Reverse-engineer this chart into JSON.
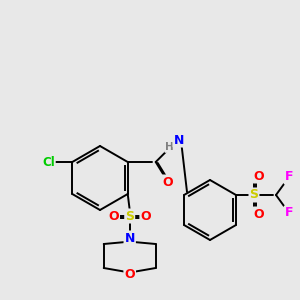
{
  "bg_color": "#e8e8e8",
  "bond_color": "#000000",
  "atom_colors": {
    "O": "#ff0000",
    "N": "#0000ff",
    "S": "#cccc00",
    "Cl": "#00cc00",
    "F": "#ff00ff",
    "C": "#000000",
    "H": "#808080"
  },
  "figsize": [
    3.0,
    3.0
  ],
  "dpi": 100
}
